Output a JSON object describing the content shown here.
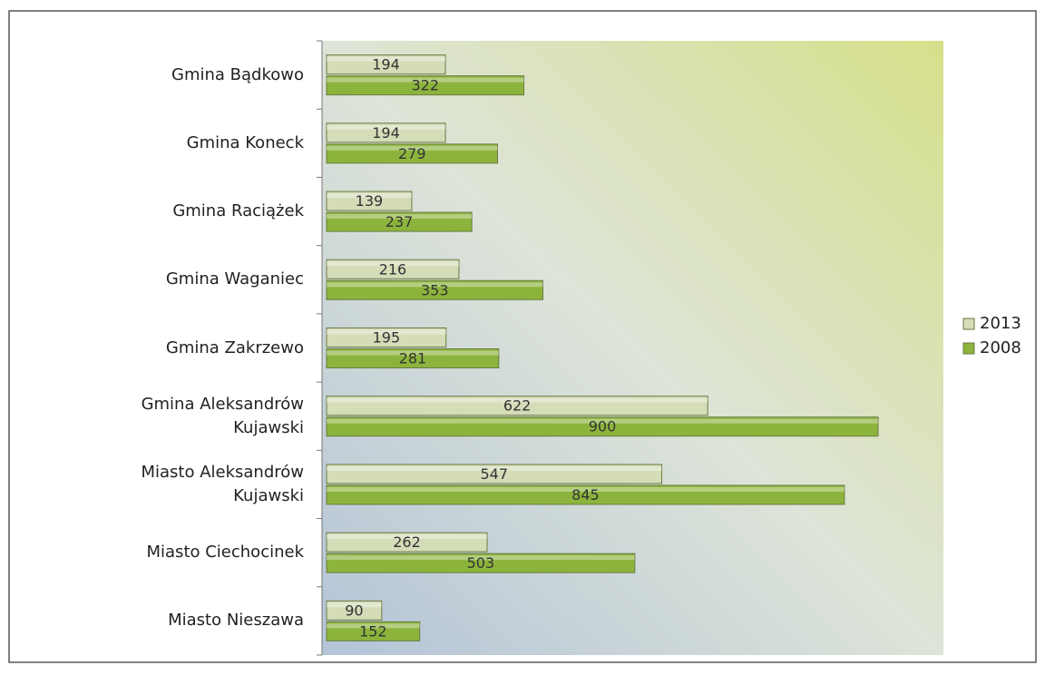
{
  "chart_data": {
    "type": "bar",
    "orientation": "horizontal",
    "categories": [
      "Gmina Bądkowo",
      "Gmina Koneck",
      "Gmina Raciążek",
      "Gmina Waganiec",
      "Gmina Zakrzewo",
      "Gmina Aleksandrów Kujawski",
      "Miasto Aleksandrów Kujawski",
      "Miasto Ciechocinek",
      "Miasto Nieszawa"
    ],
    "series": [
      {
        "name": "2013",
        "color": "#d4dcb8",
        "values": [
          194,
          194,
          139,
          216,
          195,
          622,
          547,
          262,
          90
        ]
      },
      {
        "name": "2008",
        "color": "#8cb43c",
        "values": [
          322,
          279,
          237,
          353,
          281,
          900,
          845,
          503,
          152
        ]
      }
    ],
    "legend": "right"
  }
}
